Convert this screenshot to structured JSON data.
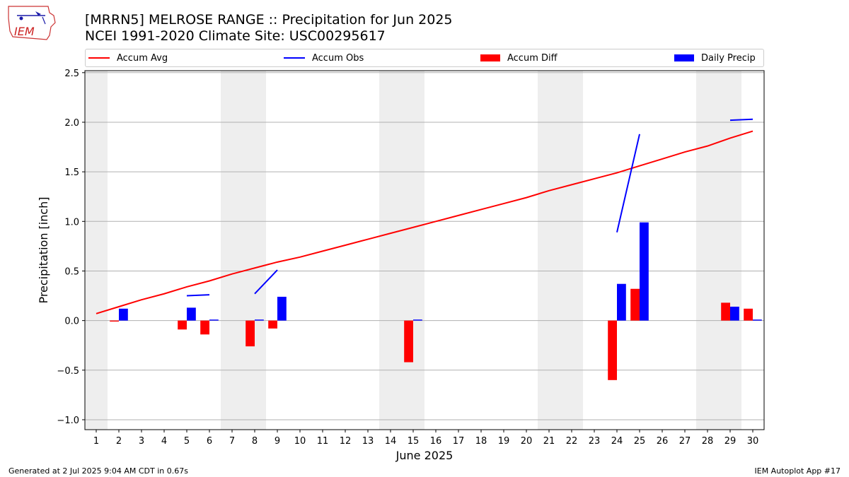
{
  "header": {
    "title_line1": "[MRRN5] MELROSE RANGE :: Precipitation for Jun 2025",
    "title_line2": "NCEI 1991-2020 Climate Site: USC00295617",
    "logo_text": "IEM"
  },
  "footer": {
    "left": "Generated at 2 Jul 2025 9:04 AM CDT in 0.67s",
    "right": "IEM Autoplot App #17"
  },
  "legend": {
    "items": [
      {
        "label": "Accum Avg",
        "kind": "line",
        "color": "#ff0000"
      },
      {
        "label": "Accum Obs",
        "kind": "line",
        "color": "#0000ff"
      },
      {
        "label": "Accum Diff",
        "kind": "bar",
        "color": "#ff0000"
      },
      {
        "label": "Daily Precip",
        "kind": "bar",
        "color": "#0000ff"
      }
    ]
  },
  "chart_data": {
    "type": "bar",
    "xlabel": "June 2025",
    "ylabel": "Precipitation [inch]",
    "ylim": [
      -1.1,
      2.52
    ],
    "xlim": [
      0.5,
      30.5
    ],
    "yticks": [
      -1.0,
      -0.5,
      0.0,
      0.5,
      1.0,
      1.5,
      2.0,
      2.5
    ],
    "ytick_labels": [
      "−1.0",
      "−0.5",
      "0.0",
      "0.5",
      "1.0",
      "1.5",
      "2.0",
      "2.5"
    ],
    "days": [
      1,
      2,
      3,
      4,
      5,
      6,
      7,
      8,
      9,
      10,
      11,
      12,
      13,
      14,
      15,
      16,
      17,
      18,
      19,
      20,
      21,
      22,
      23,
      24,
      25,
      26,
      27,
      28,
      29,
      30
    ],
    "grid": "horizontal",
    "weekend_shading": [
      [
        0.5,
        1.5
      ],
      [
        6.5,
        8.5
      ],
      [
        13.5,
        15.5
      ],
      [
        20.5,
        22.5
      ],
      [
        27.5,
        29.5
      ]
    ],
    "colors": {
      "avg": "#ff0000",
      "obs": "#0000ff",
      "diff": "#ff0000",
      "daily": "#0000ff",
      "shade": "#eeeeee",
      "grid": "#b0b0b0"
    },
    "accum_avg": [
      0.07,
      0.14,
      0.21,
      0.27,
      0.34,
      0.4,
      0.47,
      0.53,
      0.59,
      0.64,
      0.7,
      0.76,
      0.82,
      0.88,
      0.94,
      1.0,
      1.06,
      1.12,
      1.18,
      1.24,
      1.31,
      1.37,
      1.43,
      1.49,
      1.56,
      1.63,
      1.7,
      1.76,
      1.84,
      1.91
    ],
    "accum_obs_segments": [
      [
        [
          5,
          0.25
        ],
        [
          6,
          0.26
        ]
      ],
      [
        [
          8,
          0.27
        ],
        [
          9,
          0.51
        ]
      ],
      [
        [
          24,
          0.89
        ],
        [
          25,
          1.88
        ]
      ],
      [
        [
          29,
          2.02
        ],
        [
          30,
          2.03
        ]
      ]
    ],
    "accum_diff": [
      {
        "day": 2,
        "value": -0.01
      },
      {
        "day": 5,
        "value": -0.09
      },
      {
        "day": 6,
        "value": -0.14
      },
      {
        "day": 8,
        "value": -0.26
      },
      {
        "day": 9,
        "value": -0.08
      },
      {
        "day": 15,
        "value": -0.42
      },
      {
        "day": 24,
        "value": -0.6
      },
      {
        "day": 25,
        "value": 0.32
      },
      {
        "day": 29,
        "value": 0.18
      },
      {
        "day": 30,
        "value": 0.12
      }
    ],
    "daily_precip": [
      {
        "day": 2,
        "value": 0.12
      },
      {
        "day": 5,
        "value": 0.13
      },
      {
        "day": 6,
        "value": 0.01
      },
      {
        "day": 8,
        "value": 0.01
      },
      {
        "day": 9,
        "value": 0.24
      },
      {
        "day": 15,
        "value": 0.01
      },
      {
        "day": 24,
        "value": 0.37
      },
      {
        "day": 25,
        "value": 0.99
      },
      {
        "day": 29,
        "value": 0.14
      },
      {
        "day": 30,
        "value": 0.01
      }
    ]
  }
}
